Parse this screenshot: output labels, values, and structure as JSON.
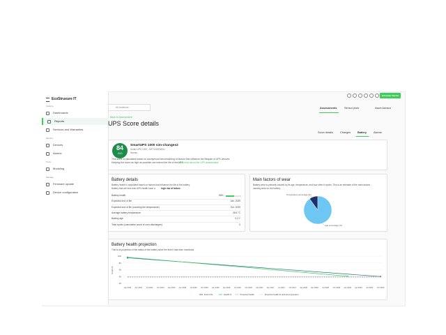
{
  "app": {
    "brand": "EcoStruxure IT",
    "vendor": "Schneider Electric"
  },
  "sidebar": {
    "sections": [
      {
        "title": "Analyze",
        "items": [
          "Dashboards",
          "Reports",
          "Services and Warranties"
        ]
      },
      {
        "title": "Monitor",
        "items": [
          "Devices",
          "Alarms"
        ]
      },
      {
        "title": "Tools",
        "items": [
          "Modeling"
        ]
      },
      {
        "title": "Manage",
        "items": [
          "Firmware update",
          "Device configuration"
        ]
      }
    ]
  },
  "location": "All locations",
  "top_tabs": [
    "Assessments",
    "Sensor plots",
    "Asset Advisor"
  ],
  "back_link": "Back to Assessment",
  "title": "UPS Score details",
  "sub_tabs": [
    "Score details",
    "Changes",
    "Battery",
    "Alarms"
  ],
  "score_card": {
    "score": "84",
    "max": "/100",
    "device": "SmartUPS 1000 sim-changes2",
    "model": "Smart-UPS 1000 - SRT1000RMXLI",
    "location": "Nantes",
    "text": "This score is calculated based on anonymous benchmarking of factors that influence the lifespan of UPS devices.",
    "text2": "Keeping the score as high as possible can extend the life of the UPS.",
    "link": "Learn more about the UPS assessment"
  },
  "battery_details": {
    "title": "Battery details",
    "description": "Battery health is calculated based on factors that influence the life of the battery.",
    "description2": "Battery that are less than 60% health have a",
    "description2_bold": "high risk of failure.",
    "rows": [
      {
        "label": "Battery health",
        "value": {
          "value": 55,
          "label": "55%"
        }
      },
      {
        "label": "Expected end of life",
        "value": "Jan. 2029"
      },
      {
        "label": "Expected end of life (counting the temperature)",
        "value": "Oct. 2029"
      },
      {
        "label": "Average battery temperature",
        "value": "26.6 °C"
      },
      {
        "label": "Battery age",
        "value": "0.2 Y"
      },
      {
        "label": "Total cycles (cumulative count of over-discharges)",
        "value": "0"
      }
    ]
  },
  "wear": {
    "title": "Main factors of wear",
    "description": "Battery wear is primarily caused by its age, temperature, and how often it cycles. This is an estimate of the main factors",
    "description2": "causing wear on the battery.",
    "chart": {
      "type": "pie",
      "slices": [
        {
          "name": "Temperature percentage (%)",
          "value": 10,
          "color": "#1f2f6b"
        },
        {
          "name": "Age percentage (%)",
          "value": 90,
          "color": "#6ec6f2"
        }
      ]
    }
  },
  "projection": {
    "title": "Battery health projection",
    "description": "This is an projection of the status of the battery since the time it has been monitored",
    "chart": {
      "type": "line",
      "y_label": "Health %",
      "categories": [
        "Jan 2024",
        "Apr 2024",
        "Jul 2024",
        "Oct 2024",
        "Jan 2025",
        "Apr 2025",
        "Jul 2025",
        "Oct 2025",
        "Jan 2026",
        "Apr 2026",
        "Jul 2026",
        "Oct 2026",
        "Jan 2027",
        "Apr 2027",
        "Jul 2027",
        "Oct 2027",
        "Jan 2028",
        "Apr 2028",
        "Jul 2028",
        "Oct 2028",
        "Jan 2029",
        "Apr 2029",
        "Jul 2029",
        "Oct 2029"
      ],
      "ylim": [
        20,
        100
      ],
      "yticks": [
        20,
        40,
        60,
        80,
        100
      ],
      "series": [
        {
          "name": "End of life",
          "color": "#1f6f80",
          "dash": false,
          "x": [
            0,
            23
          ],
          "values": [
            95,
            40
          ]
        },
        {
          "name": "Health %",
          "color": "#3dcd58",
          "dash": false,
          "x": [
            0,
            20
          ],
          "values": [
            97,
            41
          ]
        },
        {
          "name": "Projected health",
          "color": "#9a9a9a",
          "dash": true,
          "x": [
            0,
            23
          ],
          "values": [
            40,
            40
          ]
        },
        {
          "name": "Projected health at optimal temperature",
          "color": "#c8c8c8",
          "dash": true,
          "x": [
            0,
            23
          ],
          "values": [
            38,
            38
          ]
        }
      ]
    }
  }
}
